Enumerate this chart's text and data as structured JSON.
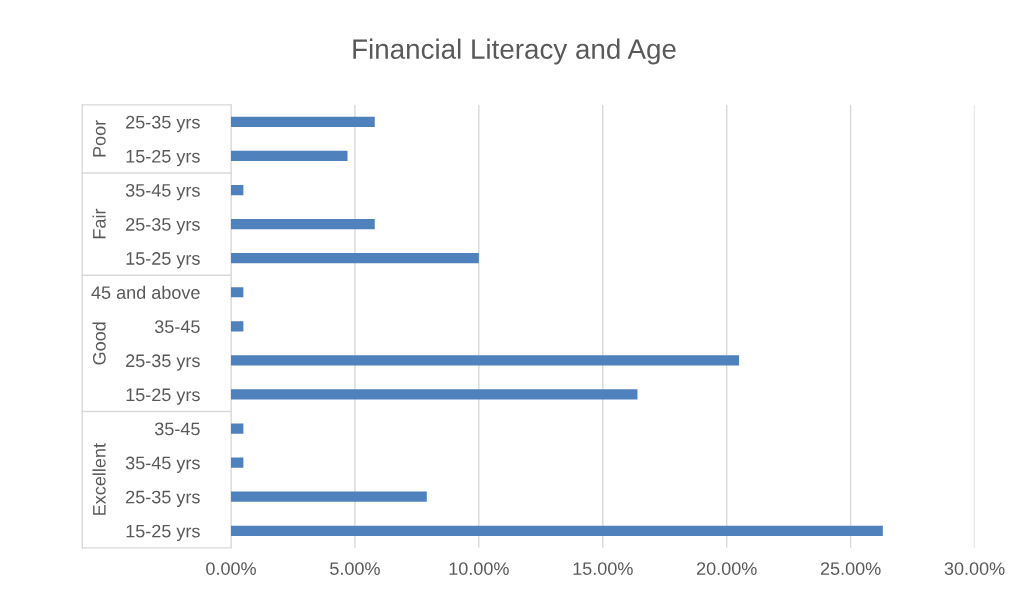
{
  "chart_data": {
    "type": "bar",
    "orientation": "horizontal",
    "title": "Financial Literacy and Age",
    "categories": [
      "25-35 yrs",
      "15-25 yrs",
      "35-45 yrs",
      "25-35 yrs",
      "15-25 yrs",
      "45 and above",
      "35-45",
      "25-35 yrs",
      "15-25 yrs",
      "35-45",
      "35-45 yrs",
      "25-35 yrs",
      "15-25 yrs"
    ],
    "series": [
      {
        "color": "#4f81bd",
        "values": [
          5.8,
          4.7,
          null,
          null,
          null,
          null,
          null,
          null,
          null,
          null,
          null,
          null,
          null
        ]
      },
      {
        "color": "#4f81bd",
        "values": [
          null,
          null,
          0.5,
          5.8,
          10.0,
          null,
          null,
          null,
          null,
          null,
          null,
          null,
          null
        ]
      },
      {
        "color": "#4f81bd",
        "values": [
          null,
          null,
          null,
          null,
          null,
          0.5,
          0.5,
          20.5,
          16.4,
          null,
          null,
          null,
          null
        ]
      },
      {
        "color": "#4f81bd",
        "values": [
          null,
          null,
          null,
          null,
          null,
          null,
          null,
          null,
          null,
          0.5,
          0.5,
          7.9,
          26.3
        ]
      }
    ],
    "annotations": [
      "Poor",
      "Fair",
      "Good",
      "Excellent"
    ],
    "xlim": [
      0,
      30
    ],
    "xticks": [
      {
        "value": 0,
        "label": "0.00%"
      },
      {
        "value": 5,
        "label": "5.00%"
      },
      {
        "value": 10,
        "label": "10.00%"
      },
      {
        "value": 15,
        "label": "15.00%"
      },
      {
        "value": 20,
        "label": "20.00%"
      },
      {
        "value": 25,
        "label": "25.00%"
      },
      {
        "value": 30,
        "label": "30.00%"
      }
    ],
    "grid": "x",
    "legend": false
  }
}
